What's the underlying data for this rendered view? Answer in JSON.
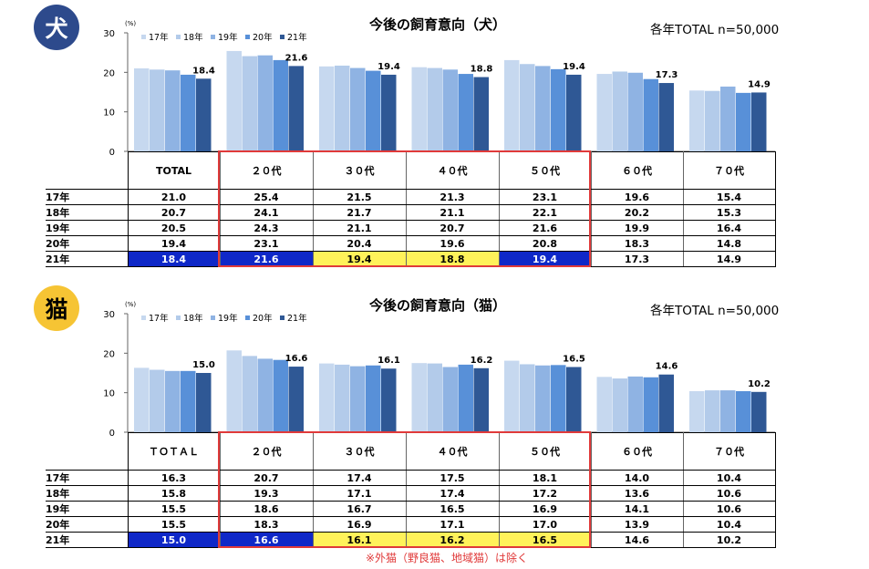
{
  "footnote": "※外猫（野良猫、地域猫）は除く",
  "colors": {
    "s17": "#c6d8ef",
    "s18": "#b3cbea",
    "s19": "#8fb3e3",
    "s20": "#5890d8",
    "s21": "#2f5895",
    "highlight_blue": "#0f28c8",
    "highlight_yellow": "#fff25a",
    "red_box": "#e03a3a",
    "dog_badge": "#2d4a8c",
    "cat_badge": "#f6c434"
  },
  "chart_data": [
    {
      "badge": "犬",
      "type": "bar",
      "title": "今後の飼育意向（犬）",
      "sample_note": "各年TOTAL n=50,000",
      "unit": "(%)",
      "ylim": [
        0,
        30
      ],
      "yticks": [
        "30",
        "20",
        "10",
        "0"
      ],
      "legend_position": "top-left",
      "categories": [
        "TOTAL",
        "２０代",
        "３０代",
        "４０代",
        "５０代",
        "６０代",
        "７０代"
      ],
      "series": [
        {
          "name": "17年",
          "values": [
            21.0,
            25.4,
            21.5,
            21.3,
            23.1,
            19.6,
            15.4
          ]
        },
        {
          "name": "18年",
          "values": [
            20.7,
            24.1,
            21.7,
            21.1,
            22.1,
            20.2,
            15.3
          ]
        },
        {
          "name": "19年",
          "values": [
            20.5,
            24.3,
            21.1,
            20.7,
            21.6,
            19.9,
            16.4
          ]
        },
        {
          "name": "20年",
          "values": [
            19.4,
            23.1,
            20.4,
            19.6,
            20.8,
            18.3,
            14.8
          ]
        },
        {
          "name": "21年",
          "values": [
            18.4,
            21.6,
            19.4,
            18.8,
            19.4,
            17.3,
            14.9
          ]
        }
      ],
      "table": {
        "rows": [
          {
            "label": "17年",
            "cells": [
              "21.0",
              "25.4",
              "21.5",
              "21.3",
              "23.1",
              "19.6",
              "15.4"
            ]
          },
          {
            "label": "18年",
            "cells": [
              "20.7",
              "24.1",
              "21.7",
              "21.1",
              "22.1",
              "20.2",
              "15.3"
            ]
          },
          {
            "label": "19年",
            "cells": [
              "20.5",
              "24.3",
              "21.1",
              "20.7",
              "21.6",
              "19.9",
              "16.4"
            ]
          },
          {
            "label": "20年",
            "cells": [
              "19.4",
              "23.1",
              "20.4",
              "19.6",
              "20.8",
              "18.3",
              "14.8"
            ]
          },
          {
            "label": "21年",
            "cells": [
              "18.4",
              "21.6",
              "19.4",
              "18.8",
              "19.4",
              "17.3",
              "14.9"
            ],
            "highlight": [
              "blue",
              "blue",
              "yellow",
              "yellow",
              "blue",
              "",
              ""
            ]
          }
        ]
      }
    },
    {
      "badge": "猫",
      "type": "bar",
      "title": "今後の飼育意向（猫）",
      "sample_note": "各年TOTAL n=50,000",
      "unit": "(%)",
      "ylim": [
        0,
        30
      ],
      "yticks": [
        "30",
        "20",
        "10",
        "0"
      ],
      "legend_position": "top-left",
      "categories": [
        "ＴＯＴＡＬ",
        "２０代",
        "３０代",
        "４０代",
        "５０代",
        "６０代",
        "７０代"
      ],
      "series": [
        {
          "name": "17年",
          "values": [
            16.3,
            20.7,
            17.4,
            17.5,
            18.1,
            14.0,
            10.4
          ]
        },
        {
          "name": "18年",
          "values": [
            15.8,
            19.3,
            17.1,
            17.4,
            17.2,
            13.6,
            10.6
          ]
        },
        {
          "name": "19年",
          "values": [
            15.5,
            18.6,
            16.7,
            16.5,
            16.9,
            14.1,
            10.6
          ]
        },
        {
          "name": "20年",
          "values": [
            15.5,
            18.3,
            16.9,
            17.1,
            17.0,
            13.9,
            10.4
          ]
        },
        {
          "name": "21年",
          "values": [
            15.0,
            16.6,
            16.1,
            16.2,
            16.5,
            14.6,
            10.2
          ]
        }
      ],
      "table": {
        "rows": [
          {
            "label": "17年",
            "cells": [
              "16.3",
              "20.7",
              "17.4",
              "17.5",
              "18.1",
              "14.0",
              "10.4"
            ]
          },
          {
            "label": "18年",
            "cells": [
              "15.8",
              "19.3",
              "17.1",
              "17.4",
              "17.2",
              "13.6",
              "10.6"
            ]
          },
          {
            "label": "19年",
            "cells": [
              "15.5",
              "18.6",
              "16.7",
              "16.5",
              "16.9",
              "14.1",
              "10.6"
            ]
          },
          {
            "label": "20年",
            "cells": [
              "15.5",
              "18.3",
              "16.9",
              "17.1",
              "17.0",
              "13.9",
              "10.4"
            ]
          },
          {
            "label": "21年",
            "cells": [
              "15.0",
              "16.6",
              "16.1",
              "16.2",
              "16.5",
              "14.6",
              "10.2"
            ],
            "highlight": [
              "blue",
              "blue",
              "yellow",
              "yellow",
              "yellow",
              "",
              ""
            ]
          }
        ]
      }
    }
  ]
}
